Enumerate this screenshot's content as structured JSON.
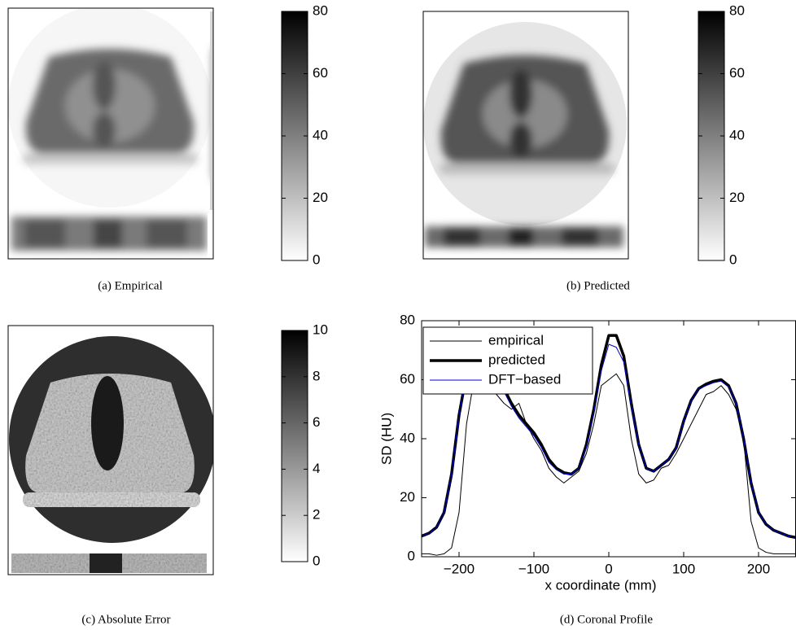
{
  "chart_data": [
    {
      "type": "image",
      "caption": "(a) Empirical",
      "ylim": [
        0,
        80
      ],
      "yticks": [
        0,
        20,
        40,
        60,
        80
      ]
    },
    {
      "type": "image",
      "caption": "(b) Predicted",
      "ylim": [
        0,
        80
      ],
      "yticks": [
        0,
        20,
        40,
        60,
        80
      ]
    },
    {
      "type": "image",
      "caption": "(c) Absolute Error",
      "ylim": [
        0,
        10
      ],
      "yticks": [
        0,
        2,
        4,
        6,
        8,
        10
      ]
    },
    {
      "type": "line",
      "caption": "(d) Coronal Profile",
      "xlabel": "x coordinate (mm)",
      "ylabel": "SD (HU)",
      "xlim": [
        -250,
        250
      ],
      "ylim": [
        0,
        80
      ],
      "xticks": [
        {
          "value": -200,
          "label": "−200"
        },
        {
          "value": -100,
          "label": "−100"
        },
        0,
        100,
        200
      ],
      "yticks": [
        0,
        20,
        40,
        60,
        80
      ],
      "grid": false,
      "legend": "upper left",
      "x": [
        -250,
        -240,
        -230,
        -220,
        -210,
        -200,
        -190,
        -180,
        -170,
        -160,
        -150,
        -140,
        -130,
        -120,
        -110,
        -100,
        -90,
        -80,
        -70,
        -60,
        -50,
        -40,
        -30,
        -20,
        -10,
        0,
        10,
        20,
        30,
        40,
        50,
        60,
        70,
        80,
        90,
        100,
        110,
        120,
        130,
        140,
        150,
        160,
        170,
        180,
        190,
        200,
        210,
        220,
        230,
        240,
        250
      ],
      "series": [
        {
          "name": "empirical",
          "color": "#000000",
          "values": [
            1,
            1,
            0.5,
            1,
            3,
            15,
            45,
            60,
            60,
            58,
            55,
            52,
            50,
            52,
            45,
            40,
            36,
            30,
            27,
            25,
            27,
            29,
            35,
            45,
            58,
            60,
            62,
            58,
            40,
            28,
            25,
            26,
            30,
            31,
            35,
            40,
            45,
            50,
            55,
            56,
            58,
            55,
            50,
            40,
            12,
            3,
            1.5,
            1,
            1,
            1,
            1
          ]
        },
        {
          "name": "predicted",
          "color": "#000000",
          "values": [
            7,
            8,
            10,
            15,
            28,
            48,
            62,
            66,
            64,
            62,
            60,
            57,
            52,
            48,
            45,
            42,
            38,
            33,
            30,
            28.5,
            28,
            30,
            38,
            50,
            65,
            75,
            75,
            68,
            52,
            38,
            30,
            29,
            31,
            33,
            37,
            46,
            53,
            57,
            58.5,
            59.5,
            60,
            58,
            52,
            40,
            25,
            15,
            11,
            9,
            8,
            7,
            6.5
          ]
        },
        {
          "name": "DFT−based",
          "color": "#0000cc",
          "values": [
            7,
            8,
            10,
            15,
            28,
            48,
            62,
            65,
            63,
            61,
            59,
            56,
            51,
            47,
            44,
            41,
            37,
            32,
            29.5,
            28,
            28,
            30,
            37,
            49,
            63,
            72,
            71,
            66,
            51,
            38,
            30,
            29,
            31,
            33,
            37,
            46,
            53,
            57,
            58,
            59,
            59.5,
            57.5,
            52,
            40,
            25,
            15,
            11,
            9,
            8,
            7,
            6.5
          ]
        }
      ]
    }
  ]
}
